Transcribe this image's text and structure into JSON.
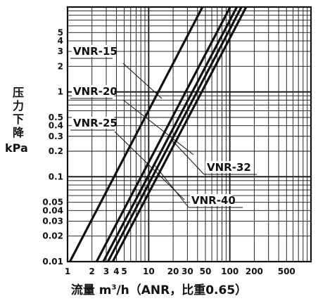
{
  "chart_data": {
    "type": "line",
    "xscale": "log",
    "yscale": "log",
    "xlim": [
      1,
      1000
    ],
    "ylim": [
      0.01,
      10
    ],
    "grid": true,
    "xlabel_prefix": "流量 m",
    "xlabel_sup": "3",
    "xlabel_suffix": "/h（ANR，比重0.65）",
    "ylabel_chars": [
      "压",
      "力",
      "下",
      "降"
    ],
    "ylabel_unit": "kPa",
    "xticks": [
      1,
      2,
      3,
      4,
      5,
      10,
      20,
      30,
      50,
      100,
      200,
      500
    ],
    "xtick_labels": [
      "1",
      "2",
      "3",
      "4",
      "5",
      "10",
      "20",
      "30",
      "50",
      "100",
      "200",
      "500"
    ],
    "yticks": [
      0.01,
      0.02,
      0.03,
      0.04,
      0.05,
      0.1,
      0.2,
      0.3,
      0.4,
      0.5,
      1,
      2,
      3,
      4,
      5
    ],
    "ytick_labels": [
      "0.01",
      "0.02",
      "0.03",
      "0.04",
      "0.05",
      "0.1",
      "0.2",
      "0.3",
      "0.4",
      "0.5",
      "1",
      "2",
      "3",
      "4",
      "5"
    ],
    "series": [
      {
        "name": "VNR-15",
        "x": [
          1.07,
          46
        ],
        "y": [
          0.01,
          10
        ]
      },
      {
        "name": "VNR-20",
        "x": [
          2.28,
          101
        ],
        "y": [
          0.01,
          10
        ]
      },
      {
        "name": "VNR-25",
        "x": [
          2.76,
          122
        ],
        "y": [
          0.01,
          10
        ]
      },
      {
        "name": "VNR-32",
        "x": [
          3.15,
          139
        ],
        "y": [
          0.01,
          10
        ]
      },
      {
        "name": "VNR-40",
        "x": [
          3.61,
          159
        ],
        "y": [
          0.01,
          10
        ]
      }
    ],
    "annotations": [
      {
        "text": "VNR-15",
        "target": "VNR-15"
      },
      {
        "text": "VNR-20",
        "target": "VNR-20"
      },
      {
        "text": "VNR-25",
        "target": "VNR-25"
      },
      {
        "text": "VNR-32",
        "target": "VNR-32"
      },
      {
        "text": "VNR-40",
        "target": "VNR-40"
      }
    ]
  }
}
